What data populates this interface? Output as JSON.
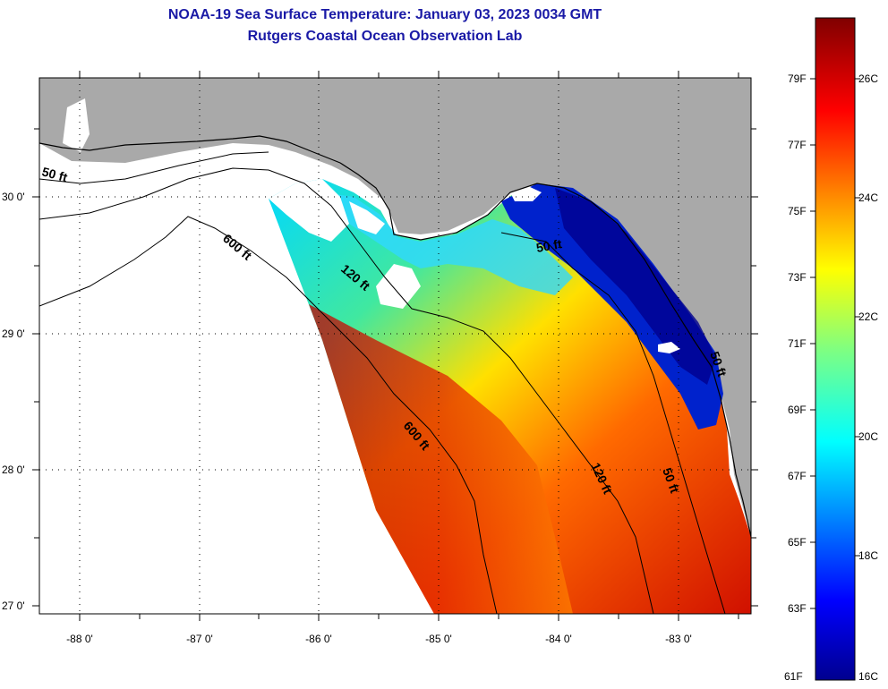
{
  "title": {
    "line1": "NOAA-19 Sea Surface Temperature:  January 03, 2023 0034 GMT",
    "line2": "Rutgers Coastal Ocean Observation Lab"
  },
  "axes": {
    "lat_ticks": [
      {
        "value": 30,
        "label": "30 0'"
      },
      {
        "value": 29,
        "label": "29 0'"
      },
      {
        "value": 28,
        "label": "28 0'"
      },
      {
        "value": 27,
        "label": "27 0'"
      }
    ],
    "lon_ticks": [
      {
        "value": -88,
        "label": "-88 0'"
      },
      {
        "value": -87,
        "label": "-87 0'"
      },
      {
        "value": -86,
        "label": "-86 0'"
      },
      {
        "value": -85,
        "label": "-85 0'"
      },
      {
        "value": -84,
        "label": "-84 0'"
      },
      {
        "value": -83,
        "label": "-83 0'"
      }
    ]
  },
  "contour_labels": [
    "50 ft",
    "600 ft",
    "120 ft",
    "50 ft",
    "600 ft",
    "120 ft",
    "50 ft",
    "50 ft"
  ],
  "colorbar": {
    "fahrenheit": [
      "79F",
      "77F",
      "75F",
      "73F",
      "71F",
      "69F",
      "67F",
      "65F",
      "63F",
      "61F"
    ],
    "celsius": [
      "26C",
      "24C",
      "22C",
      "20C",
      "18C",
      "16C"
    ]
  },
  "colors": {
    "land": "#a9a9a9",
    "title": "#1a1aa6",
    "no_data": "#ffffff"
  }
}
